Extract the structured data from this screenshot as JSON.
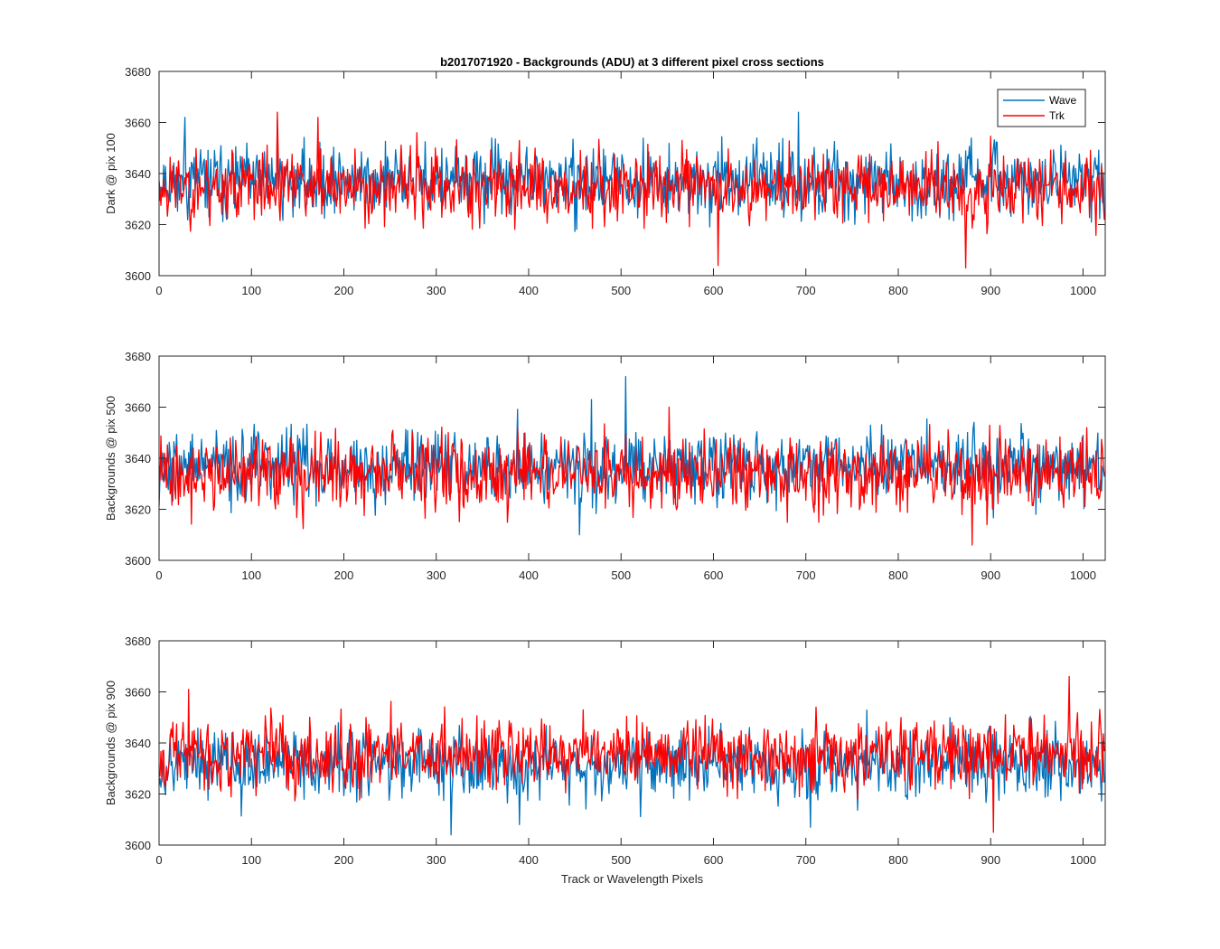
{
  "chart_data": [
    {
      "type": "line",
      "title": "b2017071920 - Backgrounds (ADU) at 3 different pixel cross sections",
      "xlabel": "",
      "ylabel": "Dark @ pix 100",
      "xlim": [
        0,
        1024
      ],
      "ylim": [
        3600,
        3680
      ],
      "xticks": [
        "0",
        "100",
        "200",
        "300",
        "400",
        "500",
        "600",
        "700",
        "800",
        "900",
        "1000"
      ],
      "yticks": [
        "3600",
        "3620",
        "3640",
        "3660",
        "3680"
      ],
      "grid": false,
      "legend": {
        "placement": "top-right",
        "entries": [
          "Wave",
          "Trk"
        ]
      },
      "series": [
        {
          "name": "Wave",
          "color": "#0072BD",
          "generator": {
            "points": 1024,
            "mean": 3637,
            "sd": 6.5,
            "min": 3616,
            "max": 3664,
            "seed": 11
          },
          "peaks": [
            [
              28,
              3662
            ],
            [
              128,
              3661
            ],
            [
              692,
              3664
            ]
          ]
        },
        {
          "name": "Trk",
          "color": "#FF0000",
          "generator": {
            "points": 1024,
            "mean": 3635,
            "sd": 7,
            "min": 3603,
            "max": 3664,
            "seed": 23
          },
          "peaks": [
            [
              128,
              3664
            ],
            [
              172,
              3662
            ],
            [
              605,
              3604
            ],
            [
              873,
              3603
            ]
          ]
        }
      ]
    },
    {
      "type": "line",
      "title": "",
      "xlabel": "",
      "ylabel": "Backgrounds @ pix 500",
      "xlim": [
        0,
        1024
      ],
      "ylim": [
        3600,
        3680
      ],
      "xticks": [
        "0",
        "100",
        "200",
        "300",
        "400",
        "500",
        "600",
        "700",
        "800",
        "900",
        "1000"
      ],
      "yticks": [
        "3600",
        "3620",
        "3640",
        "3660",
        "3680"
      ],
      "grid": false,
      "series": [
        {
          "name": "Wave",
          "color": "#0072BD",
          "generator": {
            "points": 1024,
            "mean": 3637,
            "sd": 7,
            "min": 3610,
            "max": 3672,
            "seed": 37
          },
          "peaks": [
            [
              468,
              3663
            ],
            [
              505,
              3672
            ],
            [
              455,
              3610
            ]
          ]
        },
        {
          "name": "Trk",
          "color": "#FF0000",
          "generator": {
            "points": 1024,
            "mean": 3634,
            "sd": 7,
            "min": 3606,
            "max": 3660,
            "seed": 41
          },
          "peaks": [
            [
              552,
              3660
            ],
            [
              880,
              3606
            ]
          ]
        }
      ]
    },
    {
      "type": "line",
      "title": "",
      "xlabel": "Track or Wavelength Pixels",
      "ylabel": "Backgrounds @ pix 900",
      "xlim": [
        0,
        1024
      ],
      "ylim": [
        3600,
        3680
      ],
      "xticks": [
        "0",
        "100",
        "200",
        "300",
        "400",
        "500",
        "600",
        "700",
        "800",
        "900",
        "1000"
      ],
      "yticks": [
        "3600",
        "3620",
        "3640",
        "3660",
        "3680"
      ],
      "grid": false,
      "series": [
        {
          "name": "Wave",
          "color": "#0072BD",
          "generator": {
            "points": 1024,
            "mean": 3632,
            "sd": 6.5,
            "min": 3604,
            "max": 3658,
            "seed": 53
          },
          "peaks": [
            [
              316,
              3604
            ],
            [
              390,
              3608
            ],
            [
              705,
              3607
            ]
          ]
        },
        {
          "name": "Trk",
          "color": "#FF0000",
          "generator": {
            "points": 1024,
            "mean": 3636,
            "sd": 7,
            "min": 3605,
            "max": 3666,
            "seed": 67
          },
          "peaks": [
            [
              32,
              3661
            ],
            [
              985,
              3666
            ],
            [
              903,
              3605
            ]
          ]
        }
      ]
    }
  ]
}
